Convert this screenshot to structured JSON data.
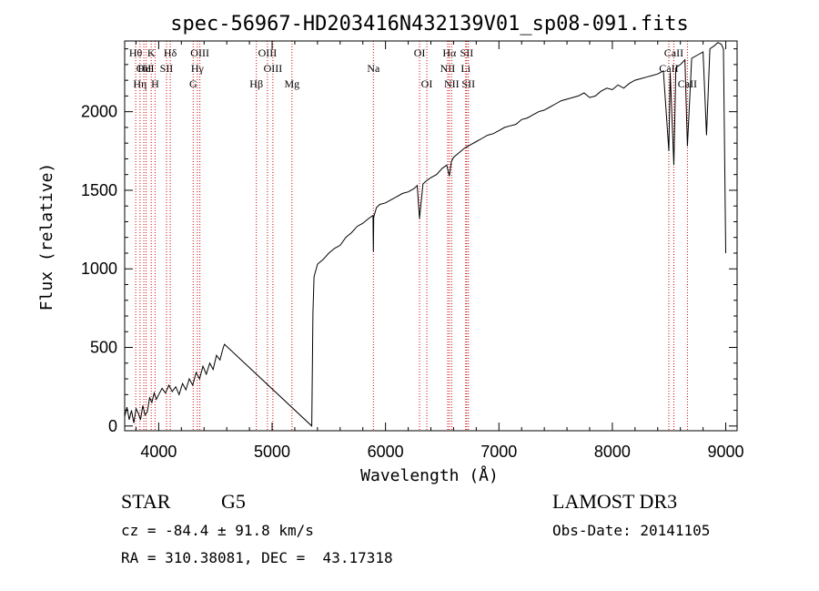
{
  "chart_data": {
    "type": "line",
    "title": "spec-56967-HD203416N432139V01_sp08-091.fits",
    "xlabel": "Wavelength (Å)",
    "ylabel": "Flux (relative)",
    "xlim": [
      3700,
      9100
    ],
    "ylim": [
      -30,
      2450
    ],
    "x_ticks": [
      4000,
      5000,
      6000,
      7000,
      8000,
      9000
    ],
    "y_ticks": [
      0,
      500,
      1000,
      1500,
      2000
    ],
    "grid": false,
    "line_color": "#000000",
    "marker_color": "#cc0000",
    "series": [
      {
        "x": [
          3700,
          3720,
          3740,
          3760,
          3780,
          3800,
          3820,
          3840,
          3860,
          3880,
          3900,
          3920,
          3940,
          3960,
          3980,
          4000,
          4030,
          4060,
          4090,
          4120,
          4150,
          4180,
          4210,
          4240,
          4270,
          4300,
          4330,
          4360,
          4390,
          4420,
          4450,
          4480,
          4510,
          4540,
          4570,
          4580,
          5350,
          5360,
          5370,
          5400,
          5450,
          5500,
          5550,
          5600,
          5650,
          5700,
          5750,
          5800,
          5850,
          5890,
          5893,
          5896,
          5920,
          5950,
          6000,
          6050,
          6100,
          6150,
          6200,
          6250,
          6280,
          6300,
          6330,
          6360,
          6400,
          6450,
          6500,
          6540,
          6563,
          6580,
          6600,
          6650,
          6700,
          6750,
          6800,
          6850,
          6900,
          6950,
          7000,
          7050,
          7100,
          7150,
          7200,
          7250,
          7300,
          7350,
          7400,
          7450,
          7500,
          7550,
          7600,
          7650,
          7700,
          7750,
          7800,
          7850,
          7900,
          7950,
          8000,
          8050,
          8100,
          8150,
          8200,
          8250,
          8300,
          8350,
          8400,
          8450,
          8498,
          8510,
          8542,
          8560,
          8600,
          8640,
          8662,
          8700,
          8750,
          8800,
          8830,
          8860,
          8900,
          8930,
          8960,
          8980,
          9000
        ],
        "y": [
          60,
          120,
          40,
          100,
          20,
          110,
          80,
          40,
          130,
          70,
          90,
          180,
          150,
          210,
          170,
          200,
          240,
          210,
          260,
          220,
          250,
          200,
          270,
          230,
          300,
          260,
          340,
          300,
          380,
          330,
          400,
          360,
          450,
          420,
          500,
          520,
          0,
          720,
          950,
          1030,
          1060,
          1100,
          1130,
          1150,
          1200,
          1230,
          1270,
          1290,
          1320,
          1340,
          1110,
          1330,
          1390,
          1410,
          1420,
          1440,
          1460,
          1480,
          1490,
          1510,
          1530,
          1320,
          1540,
          1560,
          1580,
          1600,
          1640,
          1660,
          1590,
          1680,
          1710,
          1740,
          1770,
          1790,
          1810,
          1830,
          1850,
          1860,
          1880,
          1900,
          1910,
          1920,
          1950,
          1960,
          1980,
          2000,
          2010,
          2030,
          2050,
          2070,
          2080,
          2090,
          2100,
          2120,
          2090,
          2100,
          2130,
          2150,
          2140,
          2170,
          2150,
          2180,
          2200,
          2210,
          2220,
          2230,
          2240,
          2260,
          1750,
          2250,
          1660,
          2280,
          2300,
          2330,
          1780,
          2340,
          2360,
          2380,
          1850,
          2400,
          2420,
          2440,
          2430,
          2400,
          1100
        ]
      }
    ],
    "line_markers": [
      {
        "x": 3797,
        "label": "Hθ",
        "row": 0
      },
      {
        "x": 3835,
        "label": "Hη",
        "row": 2
      },
      {
        "x": 3869,
        "label": "OII",
        "row": 1
      },
      {
        "x": 3889,
        "label": "HeI",
        "row": 1
      },
      {
        "x": 3934,
        "label": "K",
        "row": 0
      },
      {
        "x": 3968,
        "label": "H",
        "row": 2
      },
      {
        "x": 4069,
        "label": "SII",
        "row": 1
      },
      {
        "x": 4102,
        "label": "Hδ",
        "row": 0
      },
      {
        "x": 4304,
        "label": "G",
        "row": 2
      },
      {
        "x": 4341,
        "label": "Hγ",
        "row": 1
      },
      {
        "x": 4363,
        "label": "OIII",
        "row": 0
      },
      {
        "x": 4861,
        "label": "Hβ",
        "row": 2
      },
      {
        "x": 4959,
        "label": "OIII",
        "row": 0
      },
      {
        "x": 5007,
        "label": "OIII",
        "row": 1
      },
      {
        "x": 5175,
        "label": "Mg",
        "row": 2
      },
      {
        "x": 5893,
        "label": "Na",
        "row": 1
      },
      {
        "x": 6300,
        "label": "OI",
        "row": 0
      },
      {
        "x": 6364,
        "label": "OI",
        "row": 2
      },
      {
        "x": 6548,
        "label": "NII",
        "row": 1
      },
      {
        "x": 6563,
        "label": "Hα",
        "row": 0
      },
      {
        "x": 6583,
        "label": "NII",
        "row": 2
      },
      {
        "x": 6707,
        "label": "Li",
        "row": 1
      },
      {
        "x": 6716,
        "label": "SII",
        "row": 0
      },
      {
        "x": 6731,
        "label": "SII",
        "row": 2
      },
      {
        "x": 8498,
        "label": "CaII",
        "row": 1
      },
      {
        "x": 8542,
        "label": "CaII",
        "row": 0
      },
      {
        "x": 8662,
        "label": "CaII",
        "row": 2
      }
    ]
  },
  "info": {
    "object_class": "STAR",
    "subclass": "G5",
    "survey": "LAMOST DR3",
    "cz": "cz = -84.4 ± 91.8 km/s",
    "obs_date": "Obs-Date: 20141105",
    "coords": "RA = 310.38081, DEC =  43.17318"
  }
}
